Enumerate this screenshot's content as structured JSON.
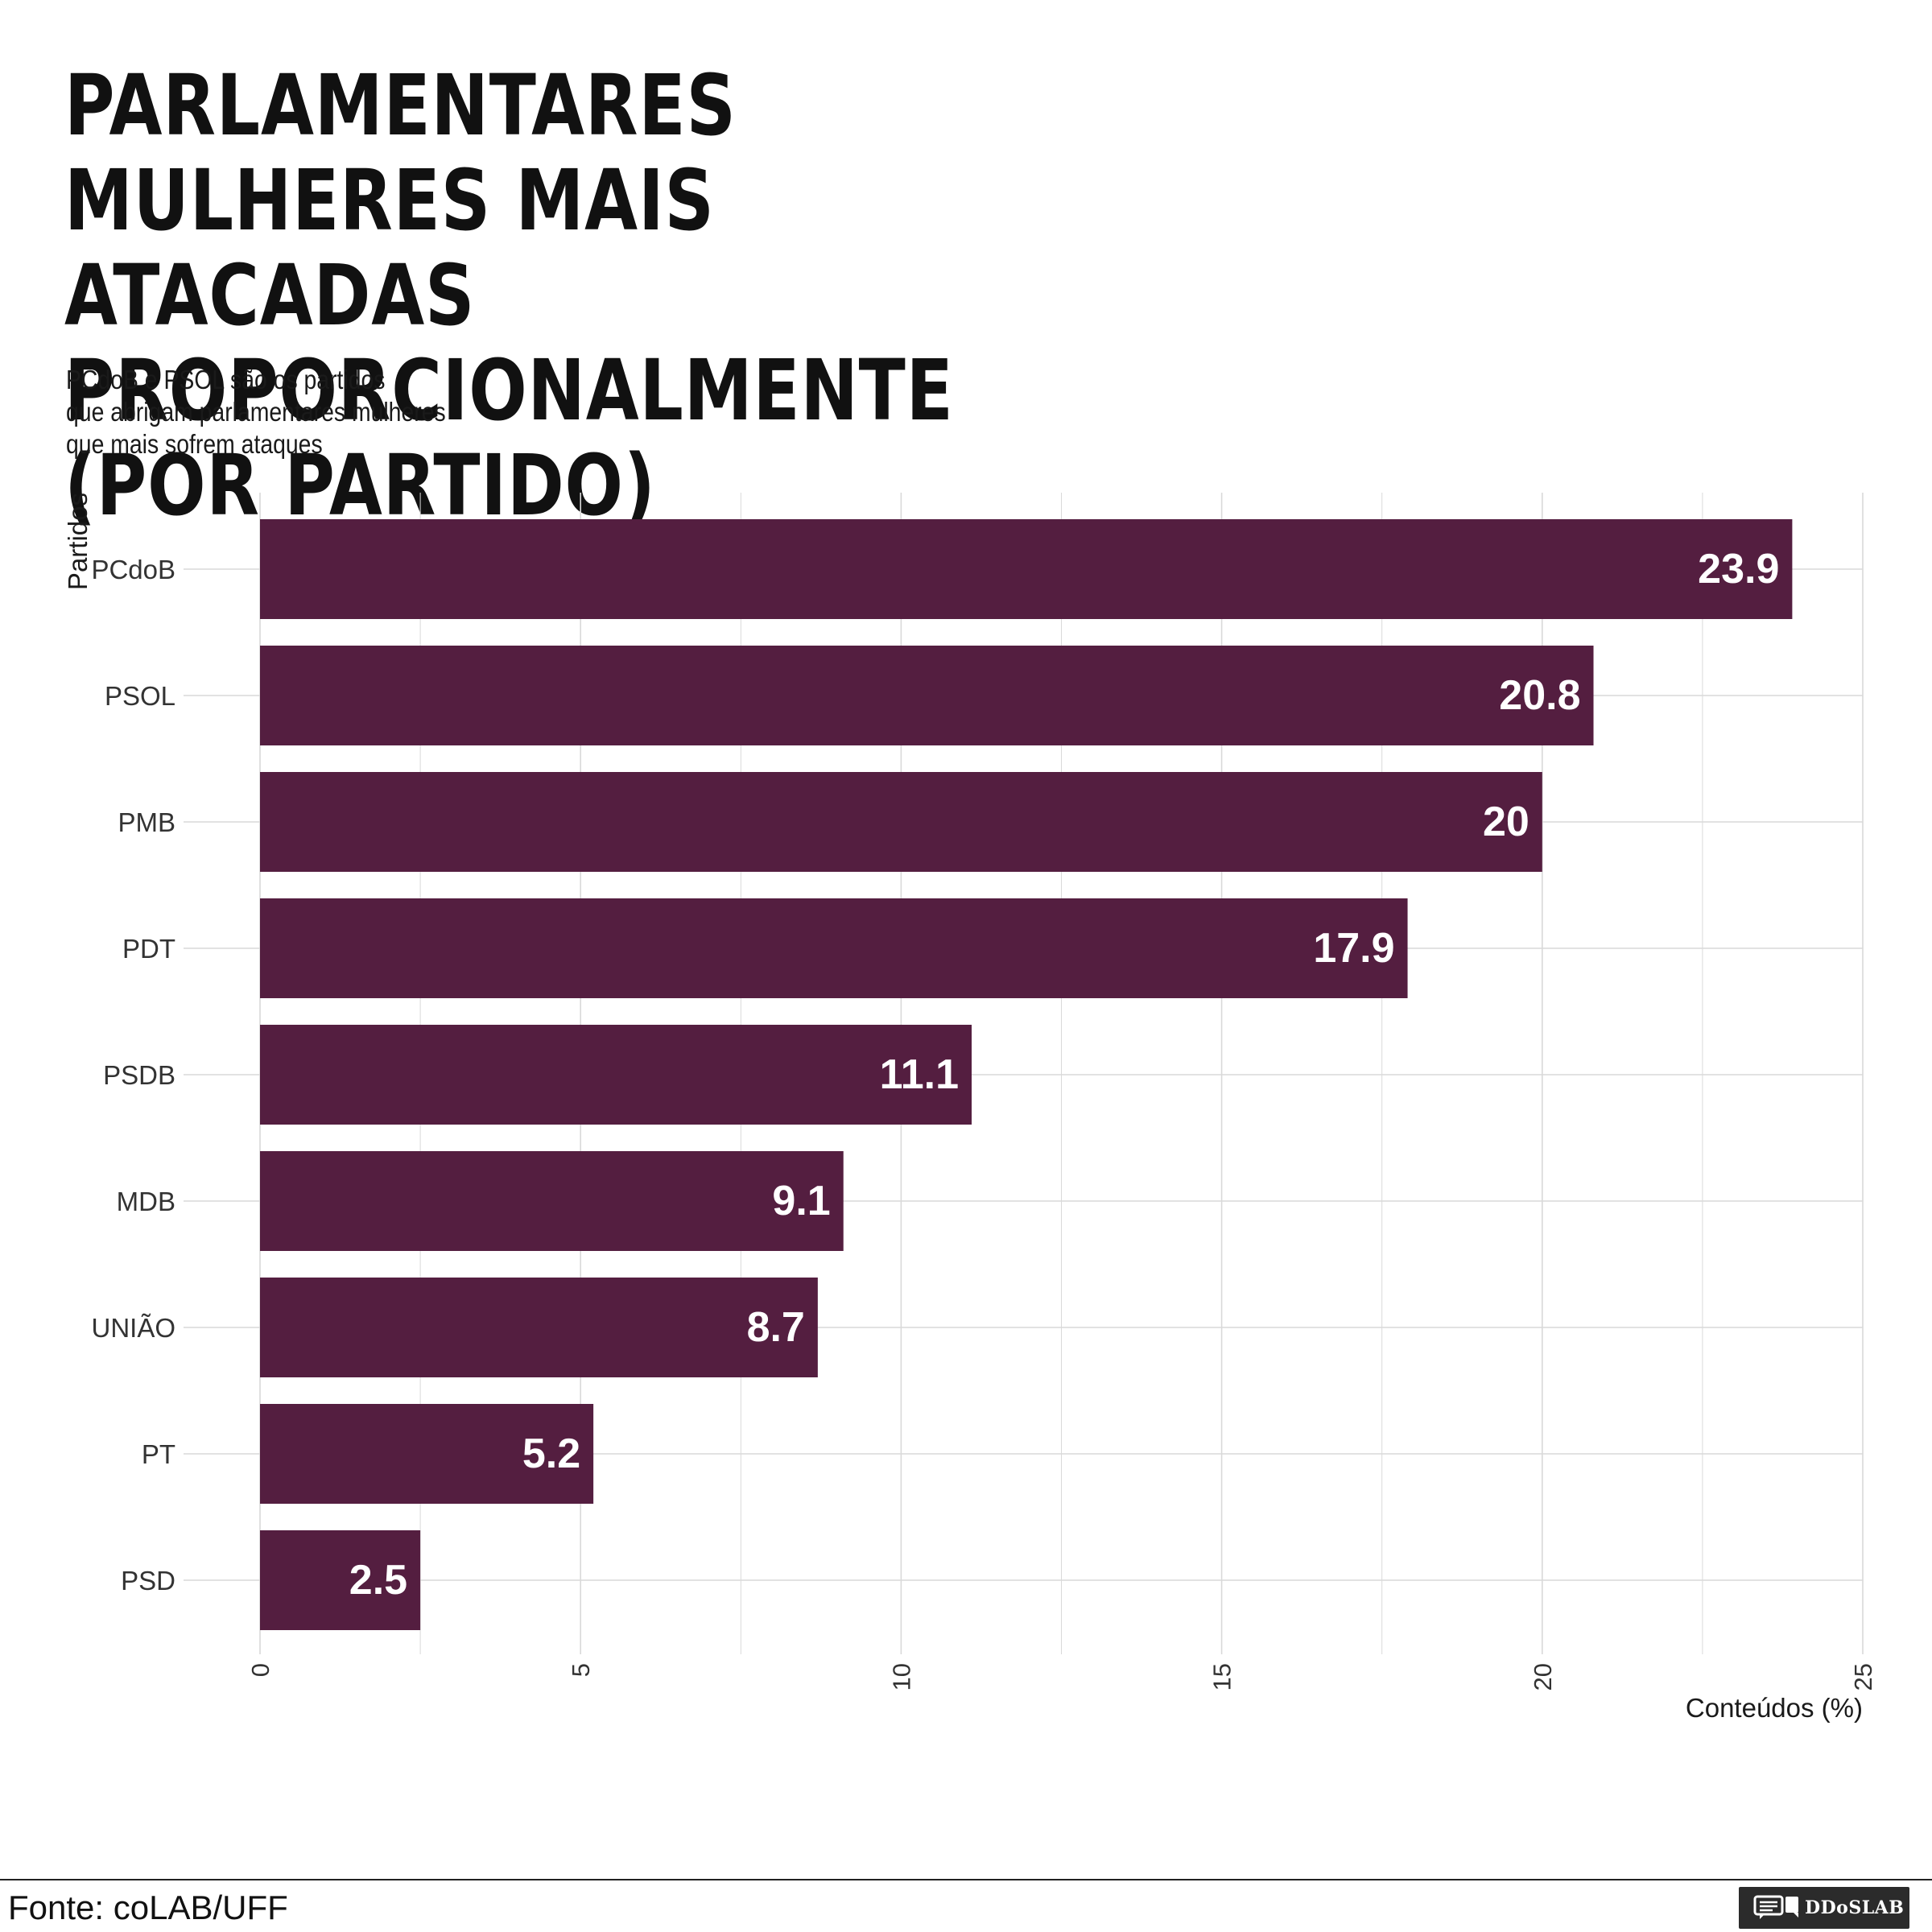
{
  "title": [
    "PARLAMENTARES MULHERES MAIS",
    "ATACADAS PROPORCIONALMENTE",
    "(POR PARTIDO)"
  ],
  "subtitle": [
    "PCdoB e PSOL são os partidos",
    "que abrigam parlamentares mulheres",
    "que mais sofrem ataques"
  ],
  "source": "Fonte: coLAB/UFF",
  "logo": {
    "label": "DDoSLAB",
    "icon": "chat-bubbles-icon"
  },
  "colors": {
    "bar": "#541e40",
    "grid": "#d9d9d9",
    "text": "#333333",
    "label": "#ffffff"
  },
  "chart_data": {
    "type": "bar",
    "orientation": "horizontal",
    "categories": [
      "PCdoB",
      "PSOL",
      "PMB",
      "PDT",
      "PSDB",
      "MDB",
      "UNIÃO",
      "PT",
      "PSD"
    ],
    "values": [
      23.9,
      20.8,
      20,
      17.9,
      11.1,
      9.1,
      8.7,
      5.2,
      2.5
    ],
    "value_labels": [
      "23.9",
      "20.8",
      "20",
      "17.9",
      "11.1",
      "9.1",
      "8.7",
      "5.2",
      "2.5"
    ],
    "xlabel": "Conteúdos (%)",
    "ylabel": "Partidos",
    "xlim": [
      0,
      25
    ],
    "xticks": [
      0,
      5,
      10,
      15,
      20,
      25
    ],
    "grid": true
  }
}
